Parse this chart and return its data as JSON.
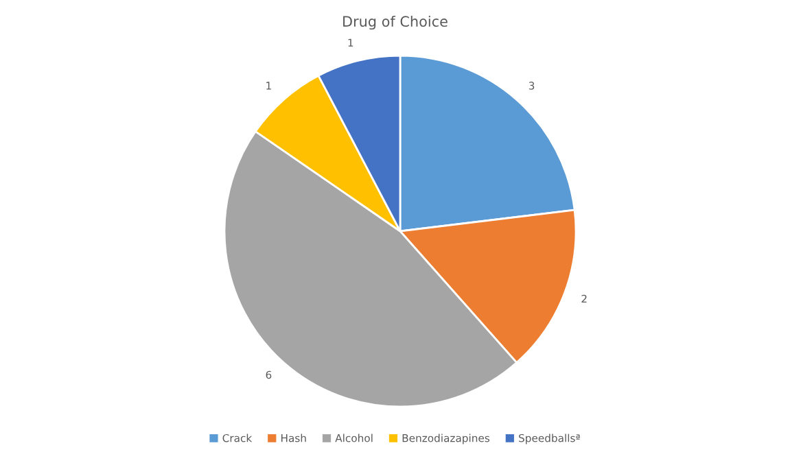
{
  "chart_data": {
    "type": "pie",
    "title": "Drug of Choice",
    "categories": [
      "Crack",
      "Hash",
      "Alcohol",
      "Benzodiazapines",
      "Speedballsª"
    ],
    "values": [
      3,
      2,
      6,
      1,
      1
    ],
    "colors": [
      "#5b9bd5",
      "#ed7d31",
      "#a5a5a5",
      "#ffc000",
      "#4472c4"
    ],
    "data_labels": true,
    "legend": "bottom"
  }
}
